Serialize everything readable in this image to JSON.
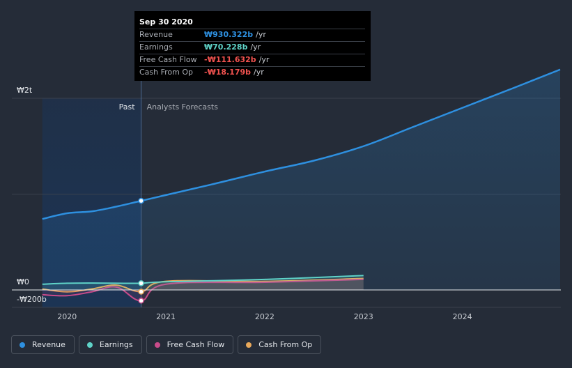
{
  "colors": {
    "background": "#252c38",
    "past_band": "#1b3456",
    "grid": "#3a414d",
    "revenue": "#2e90e0",
    "earnings": "#5fd3c8",
    "free_cash_flow": "#c94b8a",
    "cash_from_op": "#e8a85a",
    "negative": "#f0524f"
  },
  "tooltip": {
    "date": "Sep 30 2020",
    "rows": [
      {
        "label": "Revenue",
        "value": "₩930.322b",
        "unit": "/yr",
        "color": "#2e90e0"
      },
      {
        "label": "Earnings",
        "value": "₩70.228b",
        "unit": "/yr",
        "color": "#5fd3c8"
      },
      {
        "label": "Free Cash Flow",
        "value": "-₩111.632b",
        "unit": "/yr",
        "color": "#f0524f"
      },
      {
        "label": "Cash From Op",
        "value": "-₩18.179b",
        "unit": "/yr",
        "color": "#f0524f"
      }
    ]
  },
  "legend": [
    {
      "label": "Revenue",
      "color": "#2e90e0",
      "icon": "dot-icon"
    },
    {
      "label": "Earnings",
      "color": "#5fd3c8",
      "icon": "dot-icon"
    },
    {
      "label": "Free Cash Flow",
      "color": "#c94b8a",
      "icon": "dot-icon"
    },
    {
      "label": "Cash From Op",
      "color": "#e8a85a",
      "icon": "dot-icon"
    }
  ],
  "chart_data": {
    "type": "line",
    "past_label": "Past",
    "forecast_label": "Analysts Forecasts",
    "y_unit": "₩ billions",
    "ylim": [
      -200,
      2200
    ],
    "y_ticks": [
      {
        "value": 2000,
        "label": "₩2t"
      },
      {
        "value": 0,
        "label": "₩0"
      },
      {
        "value": -200,
        "label": "-₩200b"
      }
    ],
    "xlim": [
      2019.66,
      2024.99
    ],
    "x_ticks": [
      {
        "value": 2020,
        "label": "2020"
      },
      {
        "value": 2021,
        "label": "2021"
      },
      {
        "value": 2022,
        "label": "2022"
      },
      {
        "value": 2023,
        "label": "2023"
      },
      {
        "value": 2024,
        "label": "2024"
      }
    ],
    "past_start": 2019.75,
    "past_end": 2020.75,
    "grid": true,
    "legend_position": "bottom-left",
    "series": [
      {
        "name": "Revenue",
        "key": "revenue",
        "x": [
          2019.75,
          2020.0,
          2020.25,
          2020.5,
          2020.75,
          2021.0,
          2021.5,
          2022.0,
          2022.5,
          2023.0,
          2023.5,
          2024.0,
          2024.5,
          2024.99
        ],
        "y": [
          740,
          800,
          820,
          870,
          930,
          990,
          1110,
          1235,
          1350,
          1500,
          1700,
          1900,
          2100,
          2300
        ]
      },
      {
        "name": "Earnings",
        "key": "earnings",
        "x": [
          2019.75,
          2020.0,
          2020.25,
          2020.5,
          2020.75,
          2021.0,
          2022.0,
          2023.0
        ],
        "y": [
          60,
          70,
          72,
          70,
          70,
          85,
          110,
          150
        ]
      },
      {
        "name": "Free Cash Flow",
        "key": "free_cash_flow",
        "x": [
          2019.75,
          2020.0,
          2020.25,
          2020.5,
          2020.75,
          2021.0,
          2022.0,
          2023.0
        ],
        "y": [
          -50,
          -60,
          -20,
          30,
          -112,
          60,
          80,
          110
        ]
      },
      {
        "name": "Cash From Op",
        "key": "cash_from_op",
        "x": [
          2019.75,
          2020.0,
          2020.25,
          2020.5,
          2020.75,
          2021.0,
          2022.0,
          2023.0
        ],
        "y": [
          10,
          -20,
          10,
          50,
          -18,
          90,
          90,
          120
        ]
      }
    ],
    "highlight_x": 2020.75
  }
}
